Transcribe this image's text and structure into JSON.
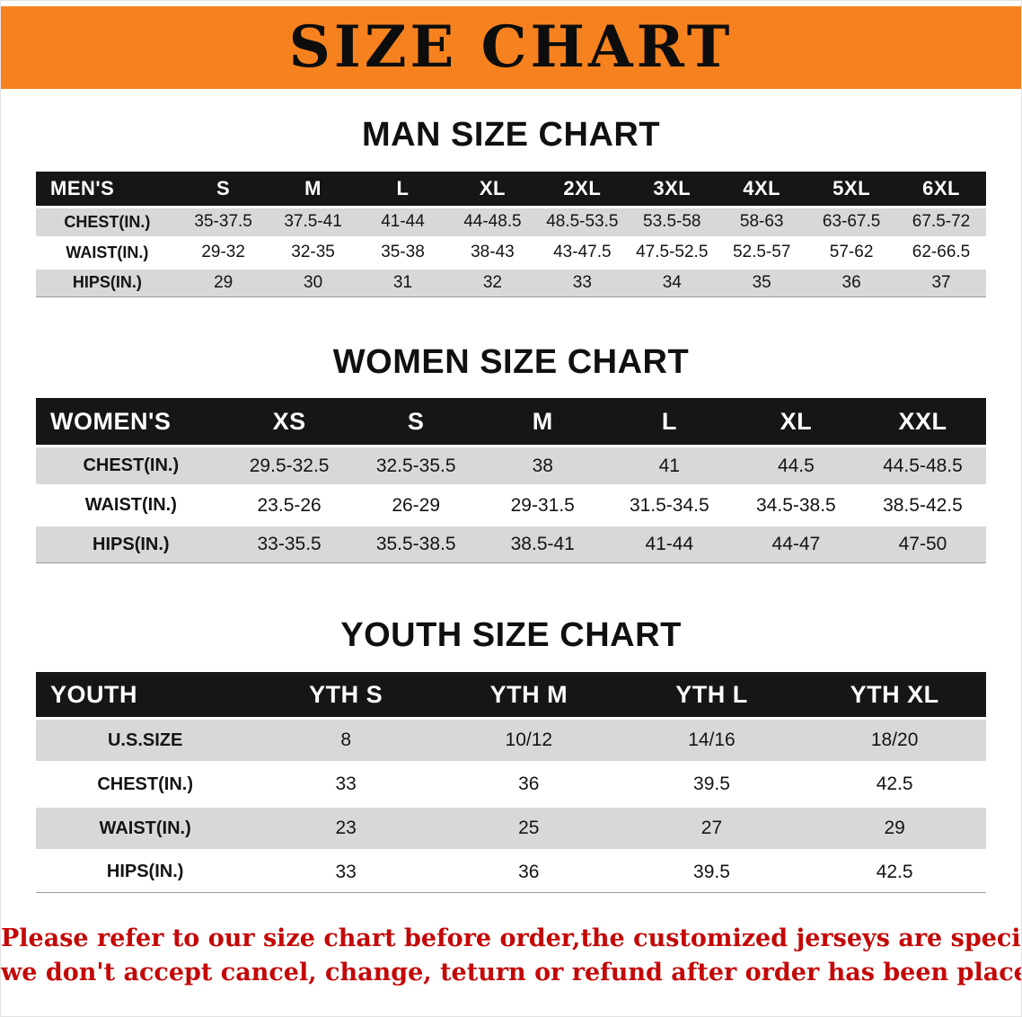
{
  "banner": {
    "title": "SIZE CHART"
  },
  "sections": [
    {
      "heading": "MAN SIZE CHART",
      "table": {
        "header": [
          "MEN'S",
          "S",
          "M",
          "L",
          "XL",
          "2XL",
          "3XL",
          "4XL",
          "5XL",
          "6XL"
        ],
        "rows": [
          [
            "CHEST(IN.)",
            "35-37.5",
            "37.5-41",
            "41-44",
            "44-48.5",
            "48.5-53.5",
            "53.5-58",
            "58-63",
            "63-67.5",
            "67.5-72"
          ],
          [
            "WAIST(IN.)",
            "29-32",
            "32-35",
            "35-38",
            "38-43",
            "43-47.5",
            "47.5-52.5",
            "52.5-57",
            "57-62",
            "62-66.5"
          ],
          [
            "HIPS(IN.)",
            "29",
            "30",
            "31",
            "32",
            "33",
            "34",
            "35",
            "36",
            "37"
          ]
        ]
      }
    },
    {
      "heading": "WOMEN SIZE CHART",
      "table": {
        "header": [
          "WOMEN'S",
          "XS",
          "S",
          "M",
          "L",
          "XL",
          "XXL"
        ],
        "rows": [
          [
            "CHEST(IN.)",
            "29.5-32.5",
            "32.5-35.5",
            "38",
            "41",
            "44.5",
            "44.5-48.5"
          ],
          [
            "WAIST(IN.)",
            "23.5-26",
            "26-29",
            "29-31.5",
            "31.5-34.5",
            "34.5-38.5",
            "38.5-42.5"
          ],
          [
            "HIPS(IN.)",
            "33-35.5",
            "35.5-38.5",
            "38.5-41",
            "41-44",
            "44-47",
            "47-50"
          ]
        ]
      }
    },
    {
      "heading": "YOUTH SIZE CHART",
      "table": {
        "header": [
          "YOUTH",
          "YTH S",
          "YTH M",
          "YTH L",
          "YTH XL"
        ],
        "rows": [
          [
            "U.S.SIZE",
            "8",
            "10/12",
            "14/16",
            "18/20"
          ],
          [
            "CHEST(IN.)",
            "33",
            "36",
            "39.5",
            "42.5"
          ],
          [
            "WAIST(IN.)",
            "23",
            "25",
            "27",
            "29"
          ],
          [
            "HIPS(IN.)",
            "33",
            "36",
            "39.5",
            "42.5"
          ]
        ]
      }
    }
  ],
  "footer": {
    "line1": "Please refer to our size chart before order,the customized jerseys are special products,",
    "line2": "we don't accept cancel, change, teturn or refund after order has been placed!"
  },
  "colors": {
    "banner-bg": "#f5821f",
    "header-bg": "#161616",
    "header-text": "#ffffff",
    "row-alt-bg": "#d8d8d8",
    "row-bg": "#ffffff",
    "disclaimer-red": "#c40808"
  }
}
